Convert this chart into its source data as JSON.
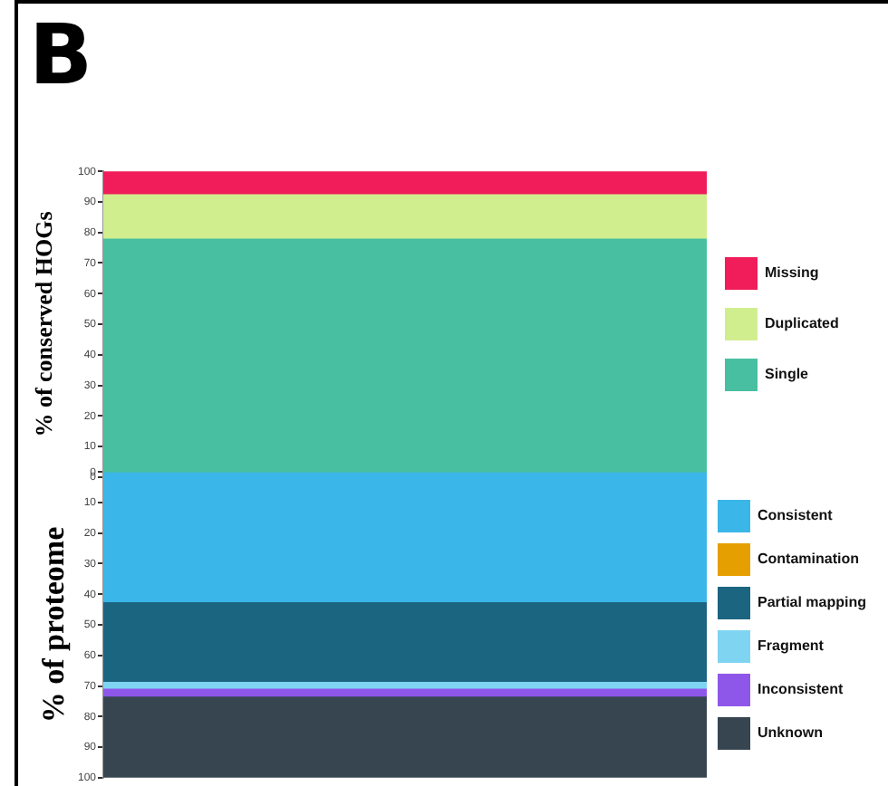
{
  "chart_data": [
    {
      "type": "bar",
      "title": "B",
      "ylabel": "% of conserved HOGs",
      "stacked": true,
      "categories": [
        null
      ],
      "ylim": [
        0,
        100
      ],
      "yticks": [
        0,
        10,
        20,
        30,
        40,
        50,
        60,
        70,
        80,
        90,
        100
      ],
      "tick_labels": "y",
      "legend": "right",
      "series": [
        {
          "name": "Single",
          "color": "#48bfa0",
          "values": [
            77.8
          ]
        },
        {
          "name": "Duplicated",
          "color": "#d1ee8e",
          "values": [
            14.5
          ]
        },
        {
          "name": "Missing",
          "color": "#f01d5a",
          "values": [
            7.7
          ]
        }
      ]
    },
    {
      "type": "bar",
      "ylabel": "% of proteome",
      "stacked": true,
      "categories": [
        null
      ],
      "ylim": [
        100,
        0
      ],
      "yticks": [
        0,
        10,
        20,
        30,
        40,
        50,
        60,
        70,
        80,
        90,
        100
      ],
      "tick_labels": "y",
      "legend": "right",
      "series": [
        {
          "name": "Consistent",
          "color": "#3bb6e8",
          "values": [
            42.4
          ]
        },
        {
          "name": "Contamination",
          "color": "#e69f00",
          "values": [
            0
          ]
        },
        {
          "name": "Partial mapping",
          "color": "#1c6580",
          "values": [
            26.1
          ]
        },
        {
          "name": "Fragment",
          "color": "#7fd4f2",
          "values": [
            2.2
          ]
        },
        {
          "name": "Inconsistent",
          "color": "#8e57ea",
          "values": [
            2.6
          ]
        },
        {
          "name": "Unknown",
          "color": "#374551",
          "values": [
            26.7
          ]
        }
      ]
    }
  ]
}
